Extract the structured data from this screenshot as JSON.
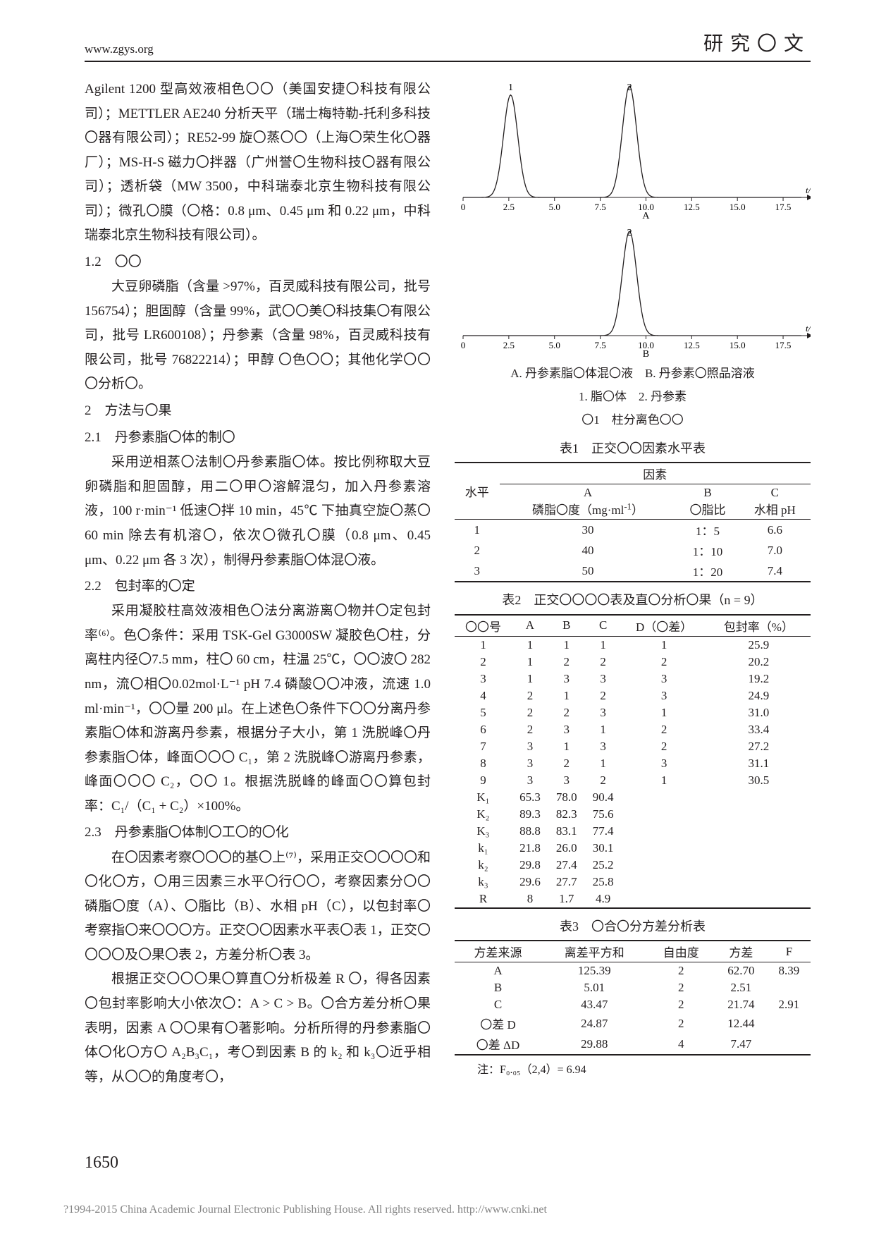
{
  "header": {
    "url": "www.zgys.org",
    "section": "研究〇文"
  },
  "left": {
    "p1": "Agilent 1200 型高效液相色〇〇（美国安捷〇科技有限公司）；METTLER AE240 分析天平（瑞士梅特勒-托利多科技〇器有限公司）；RE52-99 旋〇蒸〇〇（上海〇荣生化〇器厂）；MS-H-S 磁力〇拌器（广州誉〇生物科技〇器有限公司）；透析袋（MW 3500，中科瑞泰北京生物科技有限公司）；微孔〇膜（〇格：0.8 μm、0.45 μm 和 0.22 μm，中科瑞泰北京生物科技有限公司）。",
    "h12": "1.2　〇〇",
    "p2": "大豆卵磷脂（含量 >97%，百灵威科技有限公司，批号 156754）；胆固醇（含量 99%，武〇〇美〇科技集〇有限公司，批号 LR600108）；丹参素（含量 98%，百灵威科技有限公司，批号 76822214）；甲醇 〇色〇〇；其他化学〇〇〇分析〇。",
    "h2": "2　方法与〇果",
    "h21": "2.1　丹参素脂〇体的制〇",
    "p3": "采用逆相蒸〇法制〇丹参素脂〇体。按比例称取大豆卵磷脂和胆固醇，用二〇甲〇溶解混匀，加入丹参素溶液，100 r·min⁻¹ 低速〇拌 10 min，45℃ 下抽真空旋〇蒸〇 60 min 除去有机溶〇，依次〇微孔〇膜（0.8 μm、0.45 μm、0.22 μm 各 3 次），制得丹参素脂〇体混〇液。",
    "h22": "2.2　包封率的〇定",
    "p4": "采用凝胶柱高效液相色〇法分离游离〇物并〇定包封率⁽⁶⁾。色〇条件：采用 TSK-Gel G3000SW 凝胶色〇柱，分离柱内径〇7.5 mm，柱〇 60 cm，柱温 25℃，〇〇波〇 282 nm，流〇相〇0.02mol·L⁻¹ pH 7.4 磷酸〇〇冲液，流速 1.0 ml·min⁻¹，〇〇量 200 μl。在上述色〇条件下〇〇分离丹参素脂〇体和游离丹参素，根据分子大小，第 1 洗脱峰〇丹参素脂〇体，峰面〇〇〇 C₁，第 2 洗脱峰〇游离丹参素，峰面〇〇〇 C₂，〇〇 1。根据洗脱峰的峰面〇〇算包封率：C₁/（C₁ + C₂）×100%。",
    "h23": "2.3　丹参素脂〇体制〇工〇的〇化",
    "p5": "在〇因素考察〇〇〇的基〇上⁽⁷⁾，采用正交〇〇〇〇和〇化〇方，〇用三因素三水平〇行〇〇，考察因素分〇〇磷脂〇度（A）、〇脂比（B）、水相 pH（C），以包封率〇考察指〇来〇〇〇方。正交〇〇因素水平表〇表 1，正交〇〇〇〇及〇果〇表 2，方差分析〇表 3。",
    "p6": "根据正交〇〇〇果〇算直〇分析极差 R 〇，得各因素〇包封率影响大小依次〇：A > C > B。〇合方差分析〇果表明，因素 A 〇〇果有〇著影响。分析所得的丹参素脂〇体〇化〇方〇 A₂B₃C₁，考〇到因素 B 的 k₂ 和 k₃〇近乎相等，从〇〇的角度考〇，"
  },
  "chartA": {
    "title": "A",
    "background": "#ffffff",
    "axis_color": "#231f20",
    "line_color": "#231f20",
    "line_width": 1.3,
    "xlabel": "t/min",
    "xlim": [
      0,
      18.5
    ],
    "xticks": [
      0,
      2.5,
      5.0,
      7.5,
      10.0,
      12.5,
      15.0,
      17.5
    ],
    "peak1_label": "1",
    "peak2_label": "2",
    "peak1_x": 2.6,
    "peak2_x": 9.1,
    "peak1_height": 0.92,
    "peak2_height": 1.0,
    "peak1_width": 0.55,
    "peak2_width": 0.55
  },
  "chartB": {
    "title": "B",
    "background": "#ffffff",
    "axis_color": "#231f20",
    "line_color": "#231f20",
    "line_width": 1.3,
    "xlabel": "t/min",
    "xlim": [
      0,
      18.5
    ],
    "xticks": [
      0,
      2.5,
      5.0,
      7.5,
      10.0,
      12.5,
      15.0,
      17.5
    ],
    "peak_label": "2",
    "peak_x": 9.1,
    "peak_height": 1.0,
    "peak_width": 0.55
  },
  "figCaption": {
    "l1": "A. 丹参素脂〇体混〇液　B. 丹参素〇照品溶液",
    "l2": "1. 脂〇体　2. 丹参素",
    "l3": "〇1　柱分离色〇〇"
  },
  "table1": {
    "caption": "表1　正交〇〇因素水平表",
    "head1": "水平",
    "head2": "因素",
    "colA": "A\n磷脂〇度（mg·ml⁻¹）",
    "colB": "B\n〇脂比",
    "colC": "C\n水相 pH",
    "rows": [
      {
        "lvl": "1",
        "a": "30",
        "b": "1：5",
        "c": "6.6"
      },
      {
        "lvl": "2",
        "a": "40",
        "b": "1：10",
        "c": "7.0"
      },
      {
        "lvl": "3",
        "a": "50",
        "b": "1：20",
        "c": "7.4"
      }
    ]
  },
  "table2": {
    "caption": "表2　正交〇〇〇〇表及直〇分析〇果（n = 9）",
    "cols": [
      "〇〇号",
      "A",
      "B",
      "C",
      "D（〇差）",
      "包封率（%）"
    ],
    "rows": [
      [
        "1",
        "1",
        "1",
        "1",
        "1",
        "25.9"
      ],
      [
        "2",
        "1",
        "2",
        "2",
        "2",
        "20.2"
      ],
      [
        "3",
        "1",
        "3",
        "3",
        "3",
        "19.2"
      ],
      [
        "4",
        "2",
        "1",
        "2",
        "3",
        "24.9"
      ],
      [
        "5",
        "2",
        "2",
        "3",
        "1",
        "31.0"
      ],
      [
        "6",
        "2",
        "3",
        "1",
        "2",
        "33.4"
      ],
      [
        "7",
        "3",
        "1",
        "3",
        "2",
        "27.2"
      ],
      [
        "8",
        "3",
        "2",
        "1",
        "3",
        "31.1"
      ],
      [
        "9",
        "3",
        "3",
        "2",
        "1",
        "30.5"
      ],
      [
        "K₁",
        "65.3",
        "78.0",
        "90.4",
        "",
        ""
      ],
      [
        "K₂",
        "89.3",
        "82.3",
        "75.6",
        "",
        ""
      ],
      [
        "K₃",
        "88.8",
        "83.1",
        "77.4",
        "",
        ""
      ],
      [
        "k₁",
        "21.8",
        "26.0",
        "30.1",
        "",
        ""
      ],
      [
        "k₂",
        "29.8",
        "27.4",
        "25.2",
        "",
        ""
      ],
      [
        "k₃",
        "29.6",
        "27.7",
        "25.8",
        "",
        ""
      ],
      [
        "R",
        "8",
        "1.7",
        "4.9",
        "",
        ""
      ]
    ]
  },
  "table3": {
    "caption": "表3　〇合〇分方差分析表",
    "cols": [
      "方差来源",
      "离差平方和",
      "自由度",
      "方差",
      "F"
    ],
    "rows": [
      [
        "A",
        "125.39",
        "2",
        "62.70",
        "8.39"
      ],
      [
        "B",
        "5.01",
        "2",
        "2.51",
        ""
      ],
      [
        "C",
        "43.47",
        "2",
        "21.74",
        "2.91"
      ],
      [
        "〇差 D",
        "24.87",
        "2",
        "12.44",
        ""
      ],
      [
        "〇差 ΔD",
        "29.88",
        "4",
        "7.47",
        ""
      ]
    ],
    "note": "注：F₀.₀₅（2,4）= 6.94"
  },
  "pagenum": "1650",
  "footer": "?1994-2015 China Academic Journal Electronic Publishing House. All rights reserved.    http://www.cnki.net"
}
